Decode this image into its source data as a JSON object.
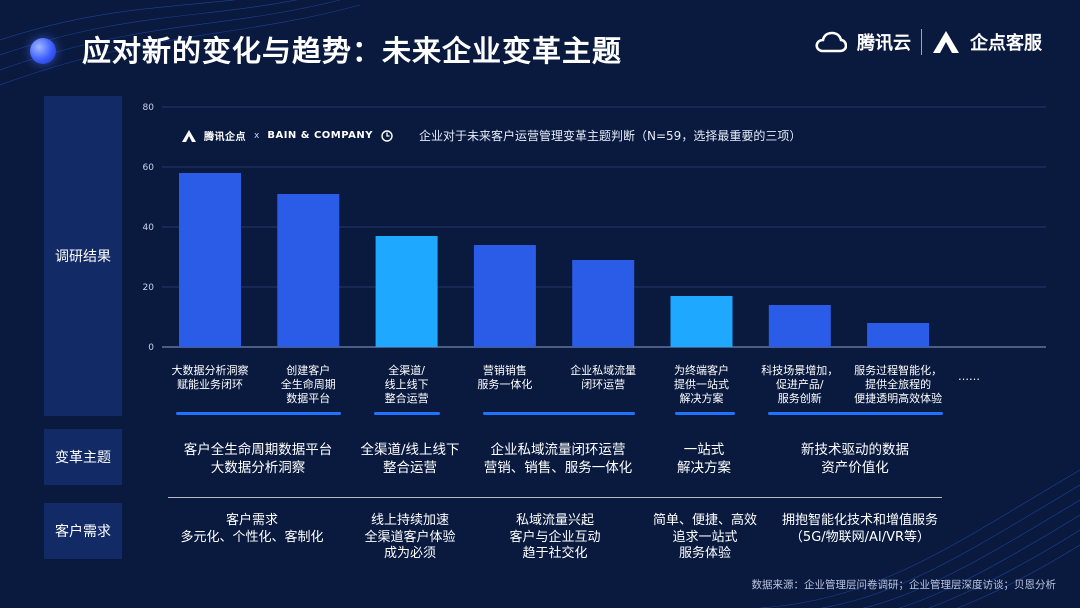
{
  "title": "应对新的变化与趋势：未来企业变革主题",
  "logos": {
    "tencent_cloud": "腾讯云",
    "qidian": "企点客服"
  },
  "legend": {
    "brand_left": "腾讯企点",
    "times": "x",
    "brand_right": "BAIN & COMPANY",
    "description": "企业对于未来客户运营管理变革主题判断（N=59，选择最重要的三项）"
  },
  "sections": {
    "survey": "调研结果",
    "theme": "变革主题",
    "needs": "客户需求"
  },
  "colors": {
    "bar_primary": "#2a5ce8",
    "bar_highlight": "#1fa8ff",
    "underline": "#1f73ff"
  },
  "chart_data": {
    "type": "bar",
    "categories": [
      "大数据分析洞察\n赋能业务闭环",
      "创建客户\n全生命周期\n数据平台",
      "全渠道/\n线上线下\n整合运营",
      "营销销售\n服务一体化",
      "企业私域流量\n闭环运营",
      "为终端客户\n提供一站式\n解决方案",
      "科技场景增加，\n促进产品/\n服务创新",
      "服务过程智能化，\n提供全旅程的\n便捷透明高效体验"
    ],
    "values": [
      58,
      51,
      37,
      34,
      29,
      17,
      14,
      8
    ],
    "highlight": [
      false,
      false,
      true,
      false,
      false,
      true,
      false,
      false
    ],
    "ylim": [
      0,
      80
    ],
    "yticks": [
      "0",
      "20",
      "40",
      "60",
      "80"
    ],
    "trailing": "……"
  },
  "themes": [
    "客户全生命周期数据平台\n大数据分析洞察",
    "全渠道/线上线下\n整合运营",
    "企业私域流量闭环运营\n营销、销售、服务一体化",
    "一站式\n解决方案",
    "新技术驱动的数据\n资产价值化"
  ],
  "needs": [
    "客户需求\n多元化、个性化、客制化",
    "线上持续加速\n全渠道客户体验\n成为必须",
    "私域流量兴起\n客户与企业互动\n趋于社交化",
    "简单、便捷、高效\n追求一站式\n服务体验",
    "拥抱智能化技术和增值服务\n（5G/物联网/AI/VR等）"
  ],
  "footnote": "数据来源：企业管理层问卷调研；企业管理层深度访谈；贝恩分析"
}
